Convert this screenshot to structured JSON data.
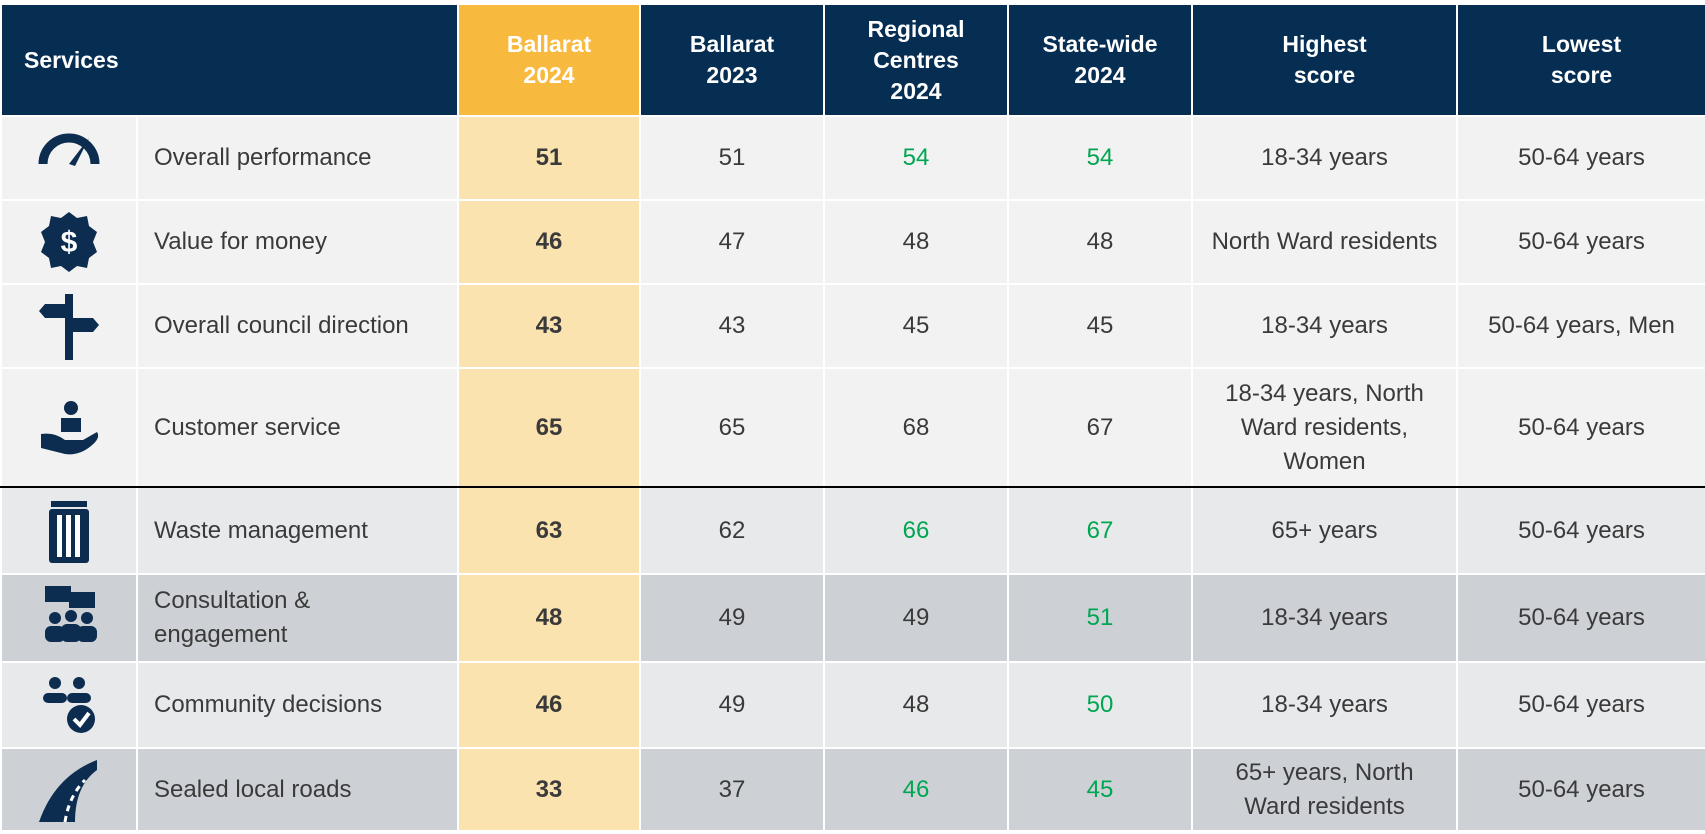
{
  "header": [
    "Services",
    "Ballarat\n2024",
    "Ballarat\n2023",
    "Regional\nCentres\n2024",
    "State-wide\n2024",
    "Highest\nscore",
    "Lowest\nscore"
  ],
  "significant_color": "#00a651",
  "rows": [
    {
      "service": "Overall performance",
      "values": [
        51,
        51,
        54,
        54
      ],
      "significant": [
        false,
        false,
        true,
        true
      ],
      "highest": "18-34 years",
      "lowest": "50-64 years"
    },
    {
      "service": "Value for money",
      "values": [
        46,
        47,
        48,
        48
      ],
      "significant": [
        false,
        false,
        false,
        false
      ],
      "highest": "North Ward residents",
      "lowest": "50-64 years"
    },
    {
      "service": "Overall council direction",
      "values": [
        43,
        43,
        45,
        45
      ],
      "significant": [
        false,
        false,
        false,
        false
      ],
      "highest": "18-34 years",
      "lowest": "50-64 years, Men"
    },
    {
      "service": "Customer service",
      "values": [
        65,
        65,
        68,
        67
      ],
      "significant": [
        false,
        false,
        false,
        false
      ],
      "highest": "18-34 years, North Ward residents, Women",
      "lowest": "50-64 years"
    },
    {
      "service": "Waste management",
      "values": [
        63,
        62,
        66,
        67
      ],
      "significant": [
        false,
        false,
        true,
        true
      ],
      "highest": "65+ years",
      "lowest": "50-64 years"
    },
    {
      "service": "Consultation & engagement",
      "values": [
        48,
        49,
        49,
        51
      ],
      "significant": [
        false,
        false,
        false,
        true
      ],
      "highest": "18-34 years",
      "lowest": "50-64 years"
    },
    {
      "service": "Community decisions",
      "values": [
        46,
        49,
        48,
        50
      ],
      "significant": [
        false,
        false,
        false,
        true
      ],
      "highest": "18-34 years",
      "lowest": "50-64 years"
    },
    {
      "service": "Sealed local roads",
      "values": [
        33,
        37,
        46,
        45
      ],
      "significant": [
        false,
        false,
        true,
        true
      ],
      "highest": "65+ years, North Ward residents",
      "lowest": "50-64 years"
    }
  ]
}
